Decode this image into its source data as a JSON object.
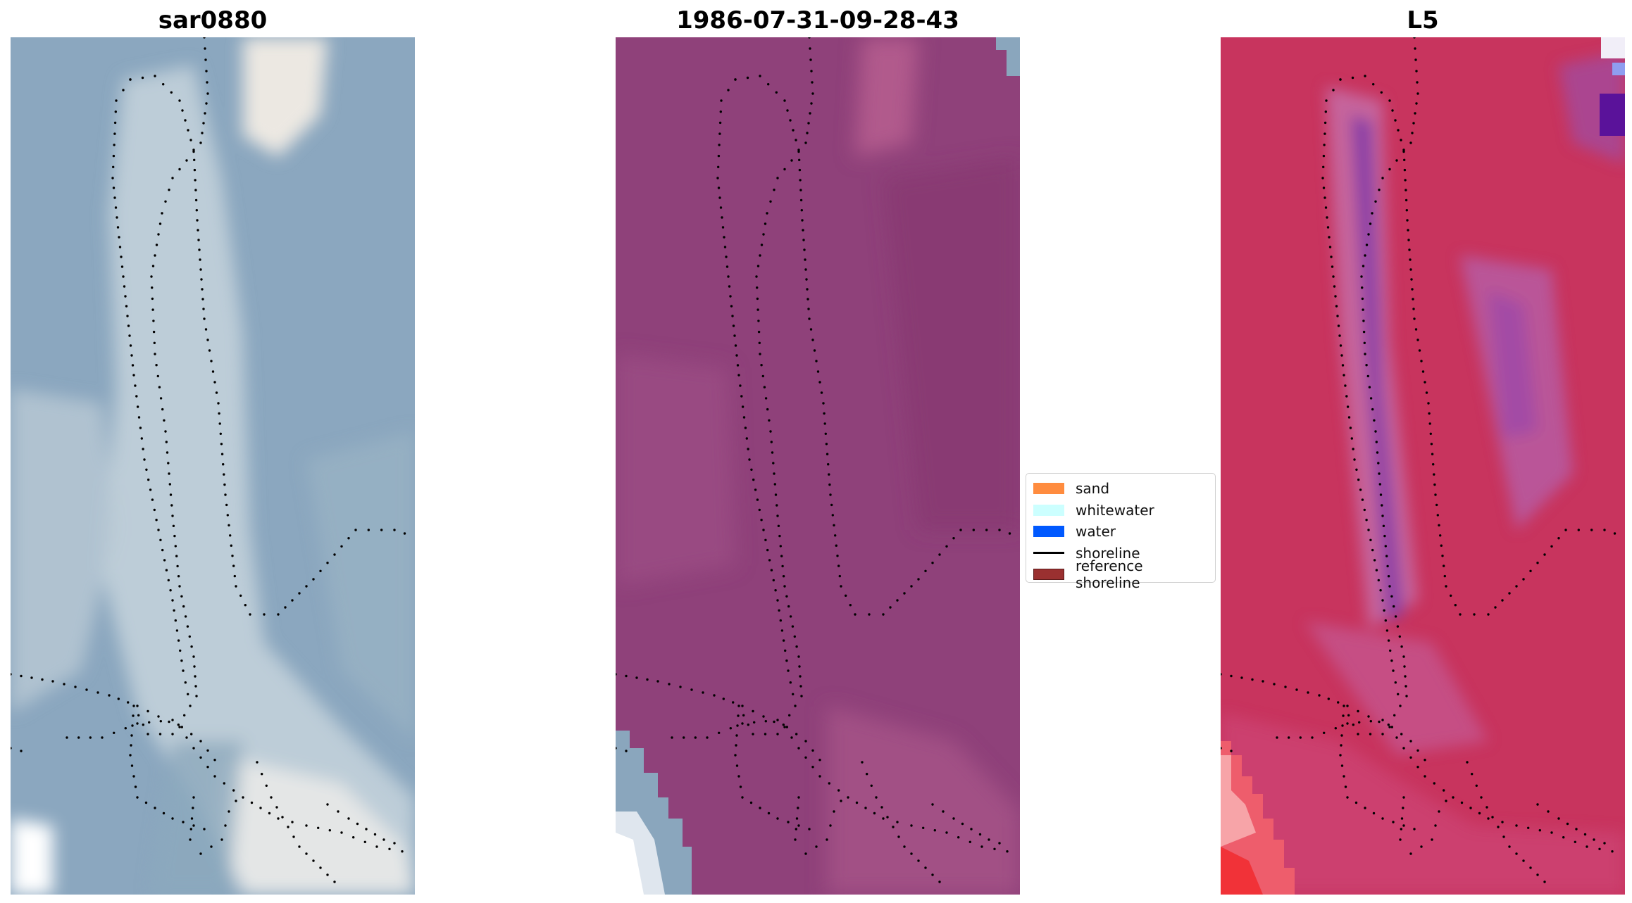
{
  "panels": [
    {
      "title": "sar0880"
    },
    {
      "title": "1986-07-31-09-28-43"
    },
    {
      "title": "L5"
    }
  ],
  "legend": {
    "items": [
      {
        "label": "sand",
        "color": "#ff8c3f",
        "kind": "patch"
      },
      {
        "label": "whitewater",
        "color": "#ccffff",
        "kind": "patch"
      },
      {
        "label": "water",
        "color": "#0059ff",
        "kind": "patch"
      },
      {
        "label": "shoreline",
        "color": "#000000",
        "kind": "line"
      },
      {
        "label": "reference shoreline",
        "color": "#9a3030",
        "kind": "patch"
      }
    ]
  },
  "colors": {
    "rgb_base": "#8aa6bd",
    "false_color_base": "#8e3f78",
    "index_base": "#c8345f"
  }
}
